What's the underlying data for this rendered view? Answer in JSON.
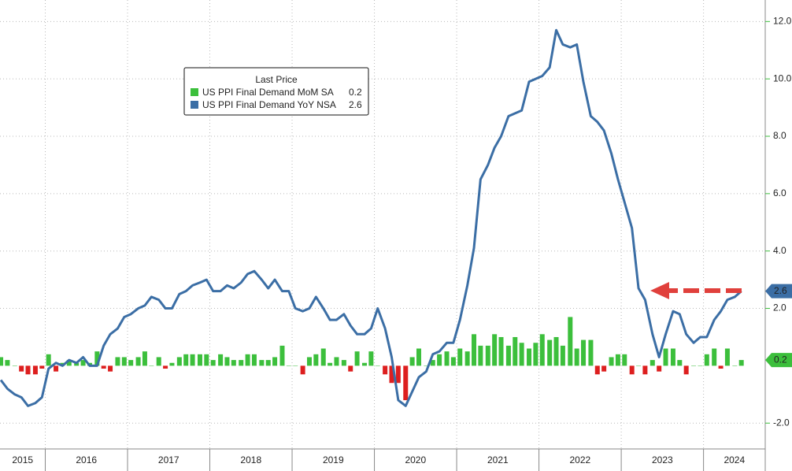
{
  "chart_data": {
    "type": "combo",
    "legend_title": "Last Price",
    "x": [
      2015.46,
      2015.54,
      2015.63,
      2015.71,
      2015.79,
      2015.88,
      2015.96,
      2016.04,
      2016.13,
      2016.21,
      2016.29,
      2016.38,
      2016.46,
      2016.54,
      2016.63,
      2016.71,
      2016.79,
      2016.88,
      2016.96,
      2017.04,
      2017.13,
      2017.21,
      2017.29,
      2017.38,
      2017.46,
      2017.54,
      2017.63,
      2017.71,
      2017.79,
      2017.88,
      2017.96,
      2018.04,
      2018.13,
      2018.21,
      2018.29,
      2018.38,
      2018.46,
      2018.54,
      2018.63,
      2018.71,
      2018.79,
      2018.88,
      2018.96,
      2019.04,
      2019.13,
      2019.21,
      2019.29,
      2019.38,
      2019.46,
      2019.54,
      2019.63,
      2019.71,
      2019.79,
      2019.88,
      2019.96,
      2020.04,
      2020.13,
      2020.21,
      2020.29,
      2020.38,
      2020.46,
      2020.54,
      2020.63,
      2020.71,
      2020.79,
      2020.88,
      2020.96,
      2021.04,
      2021.13,
      2021.21,
      2021.29,
      2021.38,
      2021.46,
      2021.54,
      2021.63,
      2021.71,
      2021.79,
      2021.88,
      2021.96,
      2022.04,
      2022.13,
      2022.21,
      2022.29,
      2022.38,
      2022.46,
      2022.54,
      2022.63,
      2022.71,
      2022.79,
      2022.88,
      2022.96,
      2023.04,
      2023.13,
      2023.21,
      2023.29,
      2023.38,
      2023.46,
      2023.54,
      2023.63,
      2023.71,
      2023.79,
      2023.88,
      2023.96,
      2024.04,
      2024.13,
      2024.21,
      2024.29,
      2024.38,
      2024.46
    ],
    "series": [
      {
        "name": "US PPI Final Demand MoM SA",
        "type": "bar",
        "color": "#3cbf3c",
        "negative_color": "#dd1f1f",
        "values": [
          0.3,
          0.2,
          0.0,
          -0.2,
          -0.3,
          -0.3,
          -0.1,
          0.4,
          -0.2,
          0.1,
          0.2,
          0.1,
          0.2,
          0.1,
          0.5,
          -0.1,
          -0.2,
          0.3,
          0.3,
          0.2,
          0.3,
          0.5,
          0.0,
          0.3,
          -0.1,
          0.1,
          0.3,
          0.4,
          0.4,
          0.4,
          0.4,
          0.2,
          0.4,
          0.3,
          0.2,
          0.2,
          0.4,
          0.4,
          0.2,
          0.2,
          0.3,
          0.7,
          0.0,
          0.0,
          -0.3,
          0.3,
          0.4,
          0.6,
          0.1,
          0.3,
          0.2,
          -0.2,
          0.5,
          0.1,
          0.5,
          0.0,
          -0.3,
          -0.6,
          -0.6,
          -1.2,
          0.3,
          0.6,
          0.0,
          0.2,
          0.4,
          0.5,
          0.3,
          0.6,
          0.5,
          1.1,
          0.7,
          0.7,
          1.1,
          1.0,
          0.7,
          1.0,
          0.8,
          0.6,
          0.8,
          1.1,
          0.9,
          1.0,
          0.7,
          1.7,
          0.6,
          0.9,
          0.9,
          -0.3,
          -0.2,
          0.3,
          0.4,
          0.4,
          -0.3,
          0.0,
          -0.3,
          0.2,
          -0.2,
          0.6,
          0.6,
          0.2,
          -0.3,
          0.0,
          0.0,
          0.4,
          0.6,
          -0.1,
          0.6,
          0.0,
          0.2
        ]
      },
      {
        "name": "US PPI Final Demand YoY NSA",
        "type": "line",
        "color": "#3b6ea5",
        "values": [
          -0.5,
          -0.8,
          -1.0,
          -1.1,
          -1.4,
          -1.3,
          -1.1,
          -0.1,
          0.1,
          0.0,
          0.2,
          0.1,
          0.3,
          0.0,
          0.0,
          0.7,
          1.1,
          1.3,
          1.7,
          1.8,
          2.0,
          2.1,
          2.4,
          2.3,
          2.0,
          2.0,
          2.5,
          2.6,
          2.8,
          2.9,
          3.0,
          2.6,
          2.6,
          2.8,
          2.7,
          2.9,
          3.2,
          3.3,
          3.0,
          2.7,
          3.0,
          2.6,
          2.6,
          2.0,
          1.9,
          2.0,
          2.4,
          2.0,
          1.6,
          1.6,
          1.8,
          1.4,
          1.1,
          1.1,
          1.3,
          2.0,
          1.3,
          0.3,
          -1.2,
          -1.4,
          -0.9,
          -0.4,
          -0.2,
          0.4,
          0.5,
          0.8,
          0.8,
          1.6,
          2.8,
          4.1,
          6.5,
          7.0,
          7.6,
          8.0,
          8.7,
          8.8,
          8.9,
          9.9,
          10.0,
          10.1,
          10.4,
          11.7,
          11.2,
          11.1,
          11.2,
          9.9,
          8.7,
          8.5,
          8.2,
          7.4,
          6.5,
          5.7,
          4.8,
          2.7,
          2.3,
          1.1,
          0.3,
          1.1,
          1.9,
          1.8,
          1.1,
          0.8,
          1.0,
          1.0,
          1.6,
          1.9,
          2.3,
          2.4,
          2.6
        ]
      }
    ],
    "xlim": [
      2015.45,
      2024.75
    ],
    "xticks": [
      2015,
      2016,
      2017,
      2018,
      2019,
      2020,
      2021,
      2022,
      2023,
      2024
    ],
    "ylim": [
      -2.9,
      12.75
    ],
    "yticks": [
      {
        "value": -2,
        "label": "-2.0"
      },
      {
        "value": 2,
        "label": "2.0"
      },
      {
        "value": 4,
        "label": "4.0"
      },
      {
        "value": 6,
        "label": "6.0"
      },
      {
        "value": 8,
        "label": "8.0"
      },
      {
        "value": 10,
        "label": "10.0"
      },
      {
        "value": 12,
        "label": "12.0"
      }
    ],
    "grid": true
  }
}
